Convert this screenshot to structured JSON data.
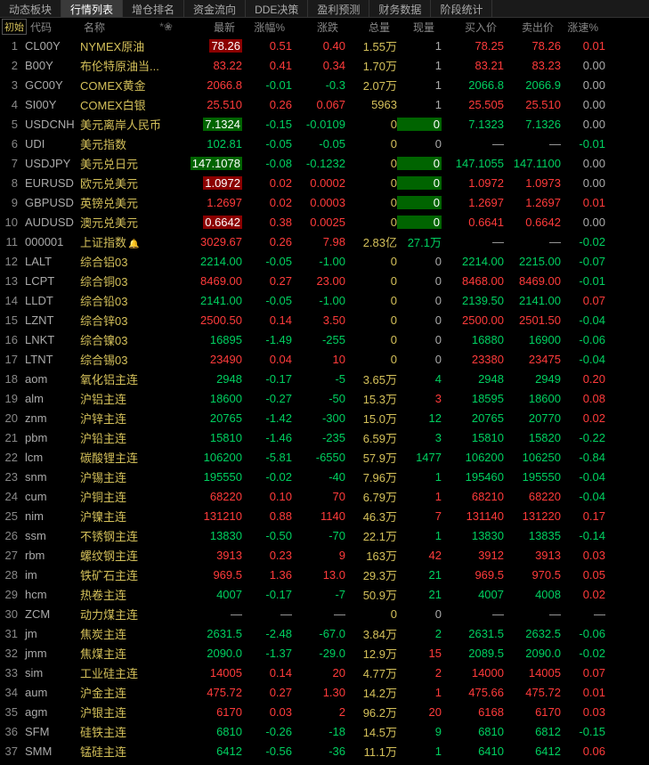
{
  "tabs": [
    "动态板块",
    "行情列表",
    "增仓排名",
    "资金流向",
    "DDE决策",
    "盈利预测",
    "财务数据",
    "阶段统计"
  ],
  "active_tab": 1,
  "init_label": "初始",
  "headers": {
    "code": "代码",
    "name": "名称",
    "star": "*❀",
    "latest": "最新",
    "pct": "涨幅%",
    "chg": "涨跌",
    "vol": "总量",
    "now": "现量",
    "bid": "买入价",
    "ask": "卖出价",
    "spd": "涨速%"
  },
  "rows": [
    {
      "i": 1,
      "code": "CL00Y",
      "name": "NYMEX原油",
      "latest": "78.26",
      "pct": "0.51",
      "chg": "0.40",
      "vol": "1.55万",
      "now": "1",
      "bid": "78.25",
      "ask": "78.26",
      "spd": "0.01",
      "dir": "up",
      "hl": "latest"
    },
    {
      "i": 2,
      "code": "B00Y",
      "name": "布伦特原油当...",
      "latest": "83.22",
      "pct": "0.41",
      "chg": "0.34",
      "vol": "1.70万",
      "now": "1",
      "bid": "83.21",
      "ask": "83.23",
      "spd": "0.00",
      "dir": "up"
    },
    {
      "i": 3,
      "code": "GC00Y",
      "name": "COMEX黄金",
      "latest": "2066.8",
      "pct": "-0.01",
      "chg": "-0.3",
      "vol": "2.07万",
      "now": "1",
      "bid": "2066.8",
      "ask": "2066.9",
      "spd": "0.00",
      "dir": "down",
      "latestUp": true
    },
    {
      "i": 4,
      "code": "SI00Y",
      "name": "COMEX白银",
      "latest": "25.510",
      "pct": "0.26",
      "chg": "0.067",
      "vol": "5963",
      "now": "1",
      "bid": "25.505",
      "ask": "25.510",
      "spd": "0.00",
      "dir": "up"
    },
    {
      "i": 5,
      "code": "USDCNH",
      "name": "美元离岸人民币",
      "latest": "7.1324",
      "pct": "-0.15",
      "chg": "-0.0109",
      "vol": "0",
      "now": "0",
      "bid": "7.1323",
      "ask": "7.1326",
      "spd": "0.00",
      "dir": "down",
      "nowGreen": true,
      "hl": "latest"
    },
    {
      "i": 6,
      "code": "UDI",
      "name": "美元指数",
      "latest": "102.81",
      "pct": "-0.05",
      "chg": "-0.05",
      "vol": "0",
      "now": "0",
      "bid": "—",
      "ask": "—",
      "spd": "-0.01",
      "dir": "down"
    },
    {
      "i": 7,
      "code": "USDJPY",
      "name": "美元兑日元",
      "latest": "147.1078",
      "pct": "-0.08",
      "chg": "-0.1232",
      "vol": "0",
      "now": "0",
      "bid": "147.1055",
      "ask": "147.1100",
      "spd": "0.00",
      "dir": "down",
      "nowGreen": true,
      "hl": "latest"
    },
    {
      "i": 8,
      "code": "EURUSD",
      "name": "欧元兑美元",
      "latest": "1.0972",
      "pct": "0.02",
      "chg": "0.0002",
      "vol": "0",
      "now": "0",
      "bid": "1.0972",
      "ask": "1.0973",
      "spd": "0.00",
      "dir": "up",
      "nowGreen": true,
      "hl": "latest"
    },
    {
      "i": 9,
      "code": "GBPUSD",
      "name": "英镑兑美元",
      "latest": "1.2697",
      "pct": "0.02",
      "chg": "0.0003",
      "vol": "0",
      "now": "0",
      "bid": "1.2697",
      "ask": "1.2697",
      "spd": "0.01",
      "dir": "up",
      "nowGreen": true
    },
    {
      "i": 10,
      "code": "AUDUSD",
      "name": "澳元兑美元",
      "latest": "0.6642",
      "pct": "0.38",
      "chg": "0.0025",
      "vol": "0",
      "now": "0",
      "bid": "0.6641",
      "ask": "0.6642",
      "spd": "0.00",
      "dir": "up",
      "nowGreen": true,
      "hl": "latest"
    },
    {
      "i": 11,
      "code": "000001",
      "name": "上证指数",
      "bell": true,
      "latest": "3029.67",
      "pct": "0.26",
      "chg": "7.98",
      "vol": "2.83亿",
      "now": "27.1万",
      "bid": "—",
      "ask": "—",
      "spd": "-0.02",
      "dir": "up",
      "nowGreenTxt": true
    },
    {
      "i": 12,
      "code": "LALT",
      "name": "综合铝03",
      "latest": "2214.00",
      "pct": "-0.05",
      "chg": "-1.00",
      "vol": "0",
      "now": "0",
      "bid": "2214.00",
      "ask": "2215.00",
      "spd": "-0.07",
      "dir": "down"
    },
    {
      "i": 13,
      "code": "LCPT",
      "name": "综合铜03",
      "latest": "8469.00",
      "pct": "0.27",
      "chg": "23.00",
      "vol": "0",
      "now": "0",
      "bid": "8468.00",
      "ask": "8469.00",
      "spd": "-0.01",
      "dir": "up"
    },
    {
      "i": 14,
      "code": "LLDT",
      "name": "综合铅03",
      "latest": "2141.00",
      "pct": "-0.05",
      "chg": "-1.00",
      "vol": "0",
      "now": "0",
      "bid": "2139.50",
      "ask": "2141.00",
      "spd": "0.07",
      "dir": "down"
    },
    {
      "i": 15,
      "code": "LZNT",
      "name": "综合锌03",
      "latest": "2500.50",
      "pct": "0.14",
      "chg": "3.50",
      "vol": "0",
      "now": "0",
      "bid": "2500.00",
      "ask": "2501.50",
      "spd": "-0.04",
      "dir": "up"
    },
    {
      "i": 16,
      "code": "LNKT",
      "name": "综合镍03",
      "latest": "16895",
      "pct": "-1.49",
      "chg": "-255",
      "vol": "0",
      "now": "0",
      "bid": "16880",
      "ask": "16900",
      "spd": "-0.06",
      "dir": "down"
    },
    {
      "i": 17,
      "code": "LTNT",
      "name": "综合锡03",
      "latest": "23490",
      "pct": "0.04",
      "chg": "10",
      "vol": "0",
      "now": "0",
      "bid": "23380",
      "ask": "23475",
      "spd": "-0.04",
      "dir": "up"
    },
    {
      "i": 18,
      "code": "aom",
      "name": "氧化铝主连",
      "latest": "2948",
      "pct": "-0.17",
      "chg": "-5",
      "vol": "3.65万",
      "now": "4",
      "bid": "2948",
      "ask": "2949",
      "spd": "0.20",
      "dir": "down",
      "nowGreenTxt": true
    },
    {
      "i": 19,
      "code": "alm",
      "name": "沪铝主连",
      "latest": "18600",
      "pct": "-0.27",
      "chg": "-50",
      "vol": "15.3万",
      "now": "3",
      "bid": "18595",
      "ask": "18600",
      "spd": "0.08",
      "dir": "down",
      "nowRed": true
    },
    {
      "i": 20,
      "code": "znm",
      "name": "沪锌主连",
      "latest": "20765",
      "pct": "-1.42",
      "chg": "-300",
      "vol": "15.0万",
      "now": "12",
      "bid": "20765",
      "ask": "20770",
      "spd": "0.02",
      "dir": "down",
      "nowGreenTxt": true
    },
    {
      "i": 21,
      "code": "pbm",
      "name": "沪铅主连",
      "latest": "15810",
      "pct": "-1.46",
      "chg": "-235",
      "vol": "6.59万",
      "now": "3",
      "bid": "15810",
      "ask": "15820",
      "spd": "-0.22",
      "dir": "down",
      "nowGreenTxt": true
    },
    {
      "i": 22,
      "code": "lcm",
      "name": "碳酸锂主连",
      "latest": "106200",
      "pct": "-5.81",
      "chg": "-6550",
      "vol": "57.9万",
      "now": "1477",
      "bid": "106200",
      "ask": "106250",
      "spd": "-0.84",
      "dir": "down",
      "nowGreenTxt": true
    },
    {
      "i": 23,
      "code": "snm",
      "name": "沪锡主连",
      "latest": "195550",
      "pct": "-0.02",
      "chg": "-40",
      "vol": "7.96万",
      "now": "1",
      "bid": "195460",
      "ask": "195550",
      "spd": "-0.04",
      "dir": "down",
      "nowGreenTxt": true
    },
    {
      "i": 24,
      "code": "cum",
      "name": "沪铜主连",
      "latest": "68220",
      "pct": "0.10",
      "chg": "70",
      "vol": "6.79万",
      "now": "1",
      "bid": "68210",
      "ask": "68220",
      "spd": "-0.04",
      "dir": "up",
      "nowRed": true
    },
    {
      "i": 25,
      "code": "nim",
      "name": "沪镍主连",
      "latest": "131210",
      "pct": "0.88",
      "chg": "1140",
      "vol": "46.3万",
      "now": "7",
      "bid": "131140",
      "ask": "131220",
      "spd": "0.17",
      "dir": "up",
      "nowRed": true
    },
    {
      "i": 26,
      "code": "ssm",
      "name": "不锈钢主连",
      "latest": "13830",
      "pct": "-0.50",
      "chg": "-70",
      "vol": "22.1万",
      "now": "1",
      "bid": "13830",
      "ask": "13835",
      "spd": "-0.14",
      "dir": "down",
      "nowGreenTxt": true
    },
    {
      "i": 27,
      "code": "rbm",
      "name": "螺纹钢主连",
      "latest": "3913",
      "pct": "0.23",
      "chg": "9",
      "vol": "163万",
      "now": "42",
      "bid": "3912",
      "ask": "3913",
      "spd": "0.03",
      "dir": "up",
      "nowRed": true
    },
    {
      "i": 28,
      "code": "im",
      "name": "铁矿石主连",
      "latest": "969.5",
      "pct": "1.36",
      "chg": "13.0",
      "vol": "29.3万",
      "now": "21",
      "bid": "969.5",
      "ask": "970.5",
      "spd": "0.05",
      "dir": "up",
      "nowGreenTxt": true
    },
    {
      "i": 29,
      "code": "hcm",
      "name": "热卷主连",
      "latest": "4007",
      "pct": "-0.17",
      "chg": "-7",
      "vol": "50.9万",
      "now": "21",
      "bid": "4007",
      "ask": "4008",
      "spd": "0.02",
      "dir": "down",
      "nowGreenTxt": true
    },
    {
      "i": 30,
      "code": "ZCM",
      "name": "动力煤主连",
      "latest": "—",
      "pct": "—",
      "chg": "—",
      "vol": "0",
      "now": "0",
      "bid": "—",
      "ask": "—",
      "spd": "—",
      "dir": "flat"
    },
    {
      "i": 31,
      "code": "jm",
      "name": "焦炭主连",
      "latest": "2631.5",
      "pct": "-2.48",
      "chg": "-67.0",
      "vol": "3.84万",
      "now": "2",
      "bid": "2631.5",
      "ask": "2632.5",
      "spd": "-0.06",
      "dir": "down",
      "nowGreenTxt": true
    },
    {
      "i": 32,
      "code": "jmm",
      "name": "焦煤主连",
      "latest": "2090.0",
      "pct": "-1.37",
      "chg": "-29.0",
      "vol": "12.9万",
      "now": "15",
      "bid": "2089.5",
      "ask": "2090.0",
      "spd": "-0.02",
      "dir": "down",
      "nowRed": true
    },
    {
      "i": 33,
      "code": "sim",
      "name": "工业硅主连",
      "latest": "14005",
      "pct": "0.14",
      "chg": "20",
      "vol": "4.77万",
      "now": "2",
      "bid": "14000",
      "ask": "14005",
      "spd": "0.07",
      "dir": "up",
      "nowRed": true
    },
    {
      "i": 34,
      "code": "aum",
      "name": "沪金主连",
      "latest": "475.72",
      "pct": "0.27",
      "chg": "1.30",
      "vol": "14.2万",
      "now": "1",
      "bid": "475.66",
      "ask": "475.72",
      "spd": "0.01",
      "dir": "up",
      "nowRed": true
    },
    {
      "i": 35,
      "code": "agm",
      "name": "沪银主连",
      "latest": "6170",
      "pct": "0.03",
      "chg": "2",
      "vol": "96.2万",
      "now": "20",
      "bid": "6168",
      "ask": "6170",
      "spd": "0.03",
      "dir": "up",
      "nowRed": true
    },
    {
      "i": 36,
      "code": "SFM",
      "name": "硅铁主连",
      "latest": "6810",
      "pct": "-0.26",
      "chg": "-18",
      "vol": "14.5万",
      "now": "9",
      "bid": "6810",
      "ask": "6812",
      "spd": "-0.15",
      "dir": "down",
      "nowGreenTxt": true
    },
    {
      "i": 37,
      "code": "SMM",
      "name": "锰硅主连",
      "latest": "6412",
      "pct": "-0.56",
      "chg": "-36",
      "vol": "11.1万",
      "now": "1",
      "bid": "6410",
      "ask": "6412",
      "spd": "0.06",
      "dir": "down",
      "nowGreenTxt": true
    }
  ]
}
